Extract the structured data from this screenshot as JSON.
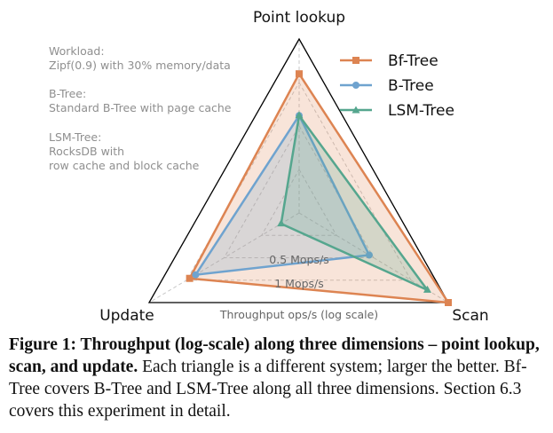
{
  "chart_data": {
    "type": "radar",
    "axes": [
      "Point lookup",
      "Scan",
      "Update"
    ],
    "scale": "log",
    "rings": [
      {
        "label": "0.5 Mops/s"
      },
      {
        "label": "1 Mops/s"
      }
    ],
    "xlabel": "Throughput ops/s (log scale)",
    "series": [
      {
        "name": "Bf-Tree",
        "color": "#dd8452",
        "values_fraction": [
          0.8,
          1.0,
          0.73
        ]
      },
      {
        "name": "B-Tree",
        "color": "#6fa3cf",
        "values_fraction": [
          0.56,
          0.47,
          0.69
        ]
      },
      {
        "name": "LSM-Tree",
        "color": "#55a68e",
        "values_fraction": [
          0.56,
          0.86,
          0.12
        ]
      }
    ],
    "legend_position": "top-right",
    "notes": [
      [
        "Workload:",
        "Zipf(0.9) with 30% memory/data"
      ],
      [
        "B-Tree:",
        "Standard B-Tree with page cache"
      ],
      [
        "LSM-Tree:",
        "RocksDB with",
        "row cache and block cache"
      ]
    ]
  },
  "caption": {
    "bold": "Figure 1: Throughput (log-scale) along three dimensions – point lookup, scan, and update.",
    "text": " Each triangle is a different system; larger the better. Bf-Tree covers B-Tree and LSM-Tree along all three dimensions. Section 6.3 covers this experiment in detail."
  }
}
